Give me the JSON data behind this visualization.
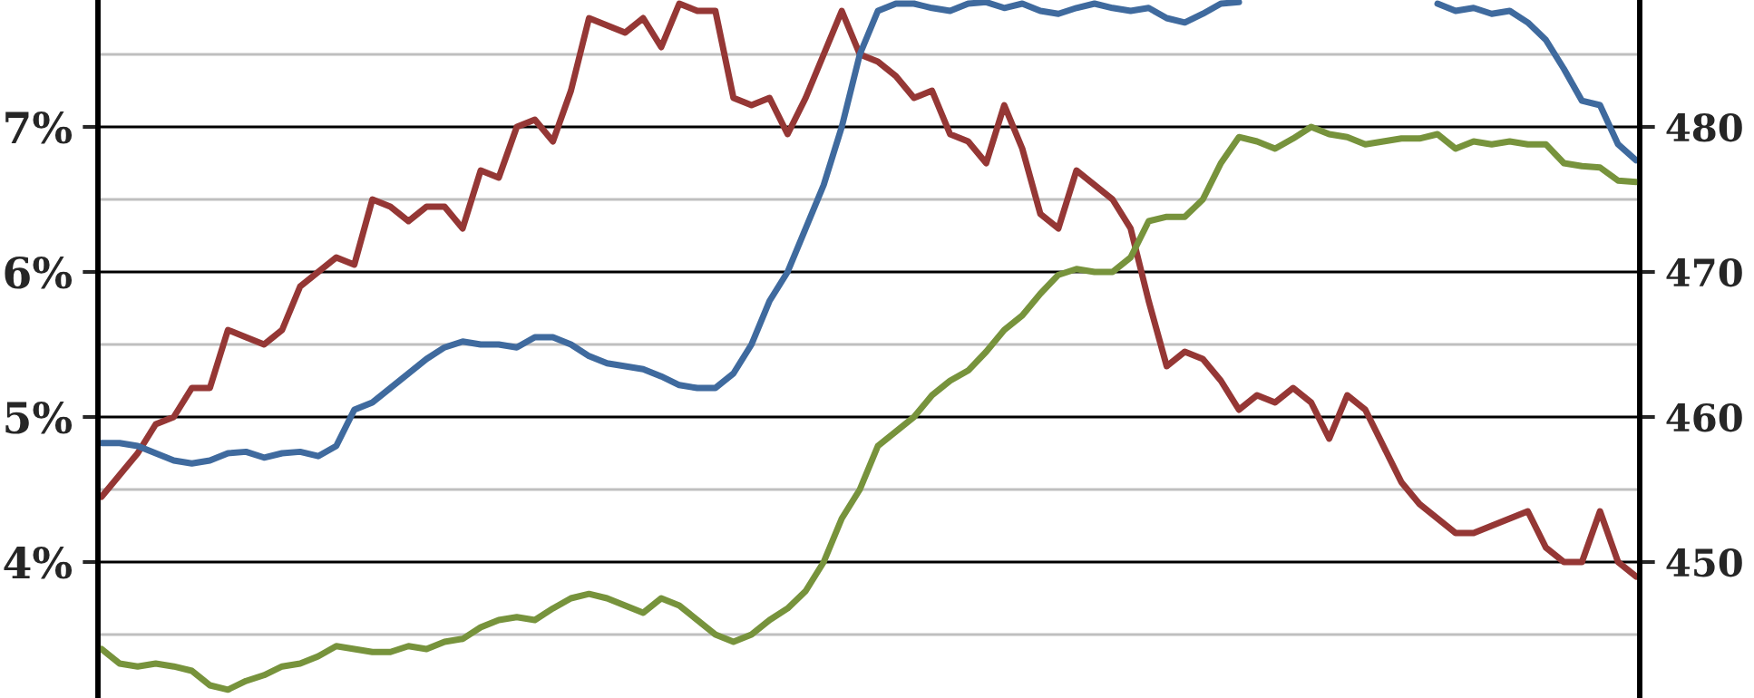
{
  "chart_data": {
    "type": "line",
    "categories": [
      null,
      null,
      null,
      null,
      null,
      null,
      null,
      null,
      null,
      null,
      null,
      null,
      null,
      null,
      null,
      null,
      null,
      null,
      null,
      null,
      null,
      null,
      null,
      null,
      null,
      null,
      null,
      null,
      null,
      null,
      null,
      null,
      null,
      null,
      null,
      null,
      null,
      null,
      null,
      null,
      null,
      null,
      null,
      null,
      null,
      null,
      null,
      null,
      null,
      null,
      null,
      null,
      null,
      null,
      null,
      null,
      null,
      null,
      null,
      null,
      null,
      null,
      null,
      null,
      null,
      null,
      null,
      null,
      null,
      null,
      null,
      null,
      null,
      null,
      null,
      null,
      null,
      null,
      null,
      null,
      null,
      null,
      null,
      null,
      null,
      null
    ],
    "series": [
      {
        "color": "#953735",
        "values": [
          4.45,
          4.6,
          4.75,
          4.95,
          5.0,
          5.2,
          5.2,
          5.6,
          5.55,
          5.5,
          5.6,
          5.9,
          6.0,
          6.1,
          6.05,
          6.5,
          6.45,
          6.35,
          6.45,
          6.45,
          6.3,
          6.7,
          6.65,
          7.0,
          7.05,
          6.9,
          7.25,
          7.75,
          7.7,
          7.65,
          7.75,
          7.55,
          7.85,
          7.8,
          7.8,
          7.2,
          7.15,
          7.2,
          6.95,
          7.2,
          7.5,
          7.8,
          7.5,
          7.45,
          7.35,
          7.2,
          7.25,
          6.95,
          6.9,
          6.75,
          7.15,
          6.85,
          6.4,
          6.3,
          6.7,
          6.6,
          6.5,
          6.3,
          5.8,
          5.35,
          5.45,
          5.4,
          5.25,
          5.05,
          5.15,
          5.1,
          5.2,
          5.1,
          4.85,
          5.15,
          5.05,
          4.8,
          4.55,
          4.4,
          4.3,
          4.2,
          4.2,
          4.25,
          4.3,
          4.35,
          4.1,
          4.0,
          4.0,
          4.35,
          4.0,
          3.9
        ]
      },
      {
        "color": "#3f6a9e",
        "values": [
          4.82,
          4.82,
          4.8,
          4.75,
          4.7,
          4.68,
          4.7,
          4.75,
          4.76,
          4.72,
          4.75,
          4.76,
          4.73,
          4.8,
          5.05,
          5.1,
          5.2,
          5.3,
          5.4,
          5.48,
          5.52,
          5.5,
          5.5,
          5.48,
          5.55,
          5.55,
          5.5,
          5.42,
          5.37,
          5.35,
          5.33,
          5.28,
          5.22,
          5.2,
          5.2,
          5.3,
          5.5,
          5.8,
          6.0,
          6.3,
          6.6,
          7.0,
          7.5,
          7.8,
          7.85,
          7.85,
          7.82,
          7.8,
          7.85,
          7.86,
          7.82,
          7.85,
          7.8,
          7.78,
          7.82,
          7.85,
          7.82,
          7.8,
          7.82,
          7.75,
          7.72,
          7.78,
          7.85,
          7.86,
          null,
          null,
          null,
          null,
          null,
          null,
          null,
          null,
          null,
          null,
          7.85,
          7.8,
          7.82,
          7.78,
          7.8,
          7.72,
          7.6,
          7.4,
          7.18,
          7.15,
          6.88,
          6.77
        ]
      },
      {
        "color": "#77933c",
        "axis": "y2",
        "values": [
          444,
          443,
          442.8,
          443,
          442.8,
          442.5,
          441.5,
          441.2,
          441.8,
          442.2,
          442.8,
          443,
          443.5,
          444.2,
          444,
          443.8,
          443.8,
          444.2,
          444,
          444.5,
          444.7,
          445.5,
          446,
          446.2,
          446,
          446.8,
          447.5,
          447.8,
          447.5,
          447,
          446.5,
          447.5,
          447,
          446,
          445,
          444.5,
          445,
          446,
          446.8,
          448,
          450,
          453,
          455,
          458,
          459,
          460,
          461.5,
          462.5,
          463.2,
          464.5,
          466,
          467,
          468.5,
          469.8,
          470.2,
          470,
          470,
          471,
          473.5,
          473.8,
          473.8,
          475,
          477.5,
          479.3,
          479,
          478.5,
          479.2,
          480,
          479.5,
          479.3,
          478.8,
          479,
          479.2,
          479.2,
          479.5,
          478.5,
          479,
          478.8,
          479,
          478.8,
          478.8,
          477.5,
          477.3,
          477.2,
          476.3,
          476.2
        ]
      }
    ],
    "ylim": [
      3.0625,
      7.875
    ],
    "yticks": [
      {
        "value": 3.5,
        "label": null
      },
      {
        "value": 4,
        "label": "4%"
      },
      {
        "value": 4.5,
        "label": null
      },
      {
        "value": 5,
        "label": "5%"
      },
      {
        "value": 5.5,
        "label": null
      },
      {
        "value": 6,
        "label": "6%"
      },
      {
        "value": 6.5,
        "label": null
      },
      {
        "value": 7,
        "label": "7%"
      },
      {
        "value": 7.5,
        "label": null
      }
    ],
    "y2lim": [
      440.625,
      488.75
    ],
    "y2ticks": [
      450,
      460,
      470,
      480
    ],
    "grid": "y",
    "tick_labels": "y",
    "legend": false,
    "marker": "none",
    "line_style": "solid"
  }
}
